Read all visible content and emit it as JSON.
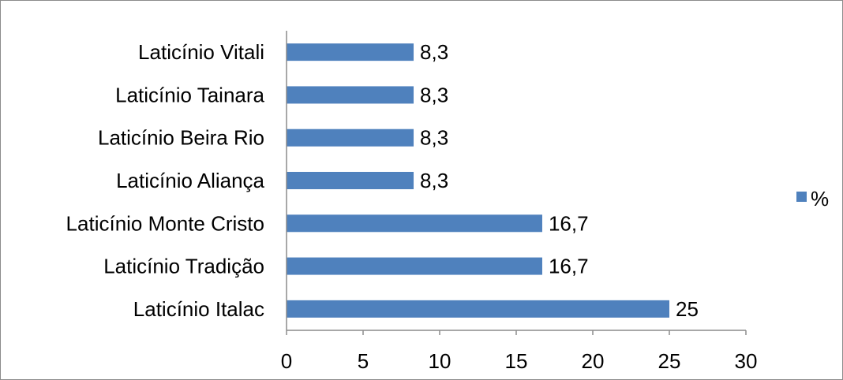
{
  "chart_data": {
    "type": "bar",
    "orientation": "horizontal",
    "categories": [
      "Laticínio Vitali",
      "Laticínio Tainara",
      "Laticínio Beira Rio",
      "Laticínio Aliança",
      "Laticínio Monte Cristo",
      "Laticínio Tradição",
      "Laticínio Italac"
    ],
    "series": [
      {
        "name": "%",
        "values": [
          8.3,
          8.3,
          8.3,
          8.3,
          16.7,
          16.7,
          25
        ],
        "value_labels": [
          "8,3",
          "8,3",
          "8,3",
          "8,3",
          "16,7",
          "16,7",
          "25"
        ],
        "color": "#4f81bd"
      }
    ],
    "title": "",
    "xlabel": "",
    "ylabel": "",
    "xlim": [
      0,
      30
    ],
    "xticks": [
      0,
      5,
      10,
      15,
      20,
      25,
      30
    ],
    "grid": false,
    "legend": {
      "position": "right",
      "entries": [
        "%"
      ]
    }
  }
}
